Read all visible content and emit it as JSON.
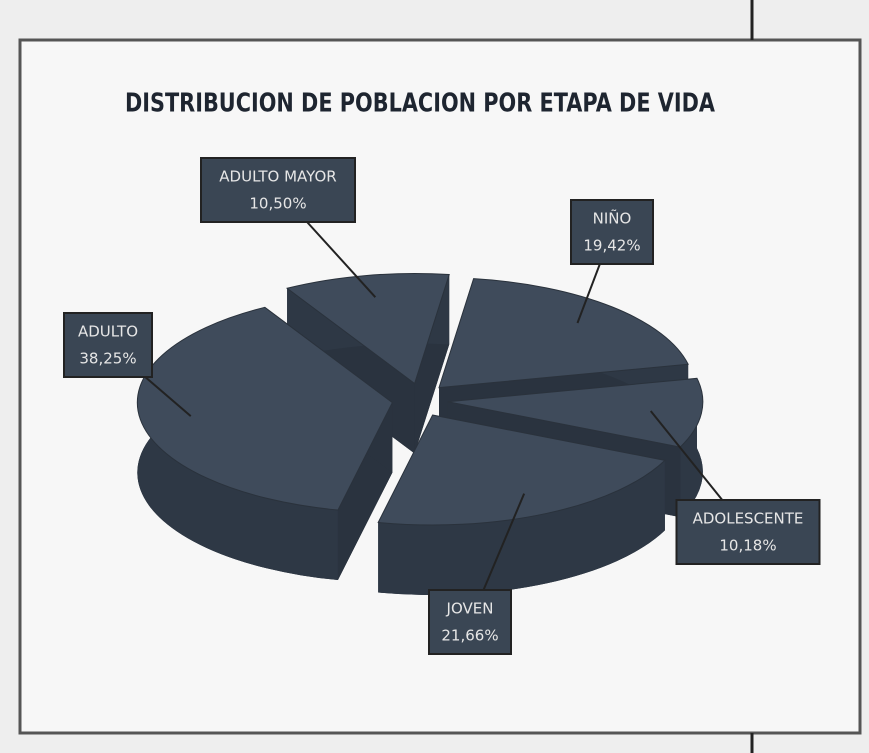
{
  "chart_data": {
    "type": "pie",
    "title": "DISTRIBUCION DE POBLACION POR ETAPA DE VIDA",
    "categories": [
      "ADULTO MAYOR",
      "NIÑO",
      "ADOLESCENTE",
      "JOVEN",
      "ADULTO"
    ],
    "values": [
      10.5,
      19.42,
      10.18,
      21.66,
      38.25
    ],
    "value_labels": [
      "10,50%",
      "19,42%",
      "10,18%",
      "21,66%",
      "38,25%"
    ],
    "color": "#3f4b5b"
  }
}
